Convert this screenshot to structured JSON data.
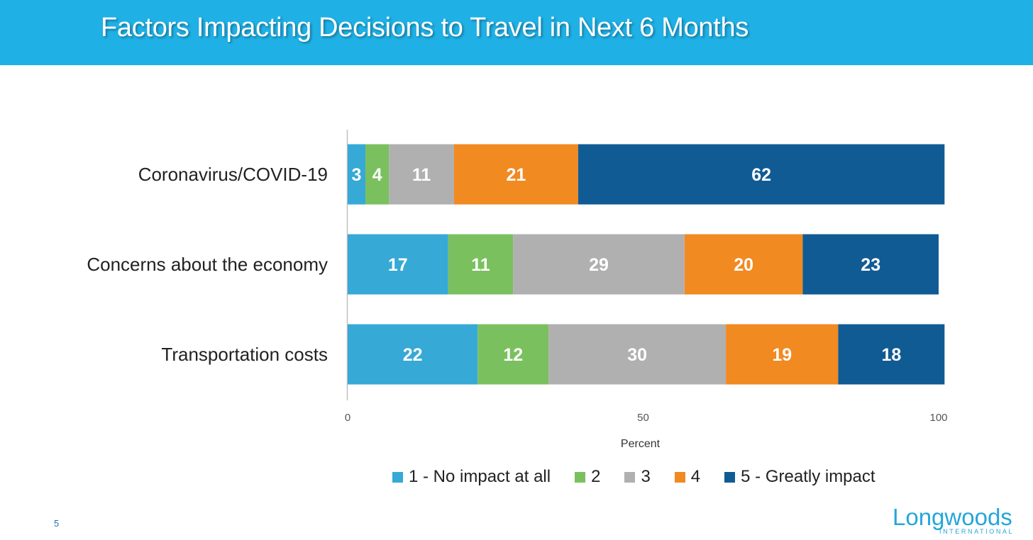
{
  "header": {
    "title": "Factors Impacting Decisions to Travel in Next 6 Months"
  },
  "page_number": "5",
  "logo": {
    "wordmark": "Longwoods",
    "subtitle": "INTERNATIONAL"
  },
  "colors": {
    "header_bg": "#1fb1e6",
    "series": [
      "#36a9d6",
      "#7bc05f",
      "#b0b0b0",
      "#f18a21",
      "#115b94"
    ]
  },
  "chart_data": {
    "type": "bar",
    "orientation": "horizontal",
    "stacked": true,
    "title": "",
    "xlabel": "Percent",
    "ylabel": "",
    "xlim": [
      0,
      100
    ],
    "xticks": [
      0,
      50,
      100
    ],
    "grid": false,
    "legend": "bottom",
    "categories": [
      "Coronavirus/COVID-19",
      "Concerns about the economy",
      "Transportation costs"
    ],
    "series": [
      {
        "name": "1 - No impact at all",
        "values": [
          3,
          17,
          22
        ]
      },
      {
        "name": "2",
        "values": [
          4,
          11,
          12
        ]
      },
      {
        "name": "3",
        "values": [
          11,
          29,
          30
        ]
      },
      {
        "name": "4",
        "values": [
          21,
          20,
          19
        ]
      },
      {
        "name": "5 - Greatly impact",
        "values": [
          62,
          23,
          18
        ]
      }
    ]
  }
}
